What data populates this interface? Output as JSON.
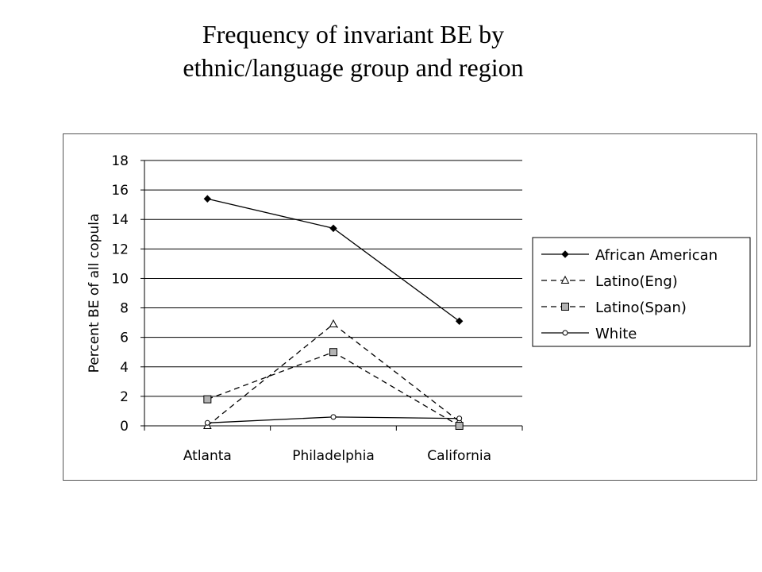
{
  "title_lines": [
    "Frequency of invariant BE by",
    "ethnic/language group and region"
  ],
  "chart_data": {
    "type": "line",
    "title": "Frequency of invariant BE by ethnic/language group and region",
    "xlabel": "",
    "ylabel": "Percent BE of all copula",
    "categories": [
      "Atlanta",
      "Philadelphia",
      "California"
    ],
    "ylim": [
      0,
      18
    ],
    "yticks": [
      0,
      2,
      4,
      6,
      8,
      10,
      12,
      14,
      16,
      18
    ],
    "grid": true,
    "legend": "right",
    "series": [
      {
        "name": "African American",
        "values": [
          15.4,
          13.4,
          7.1
        ],
        "marker": "diamond",
        "dash": "solid",
        "marker_fill": "#000000"
      },
      {
        "name": "Latino(Eng)",
        "values": [
          0.0,
          6.9,
          0.3
        ],
        "marker": "triangle",
        "dash": "dashed",
        "marker_fill": "#ffffff"
      },
      {
        "name": "Latino(Span)",
        "values": [
          1.8,
          5.0,
          0.0
        ],
        "marker": "square",
        "dash": "dashed",
        "marker_fill": "#b3b3b3"
      },
      {
        "name": "White",
        "values": [
          0.2,
          0.6,
          0.5
        ],
        "marker": "circle",
        "dash": "solid",
        "marker_fill": "#ffffff"
      }
    ]
  }
}
